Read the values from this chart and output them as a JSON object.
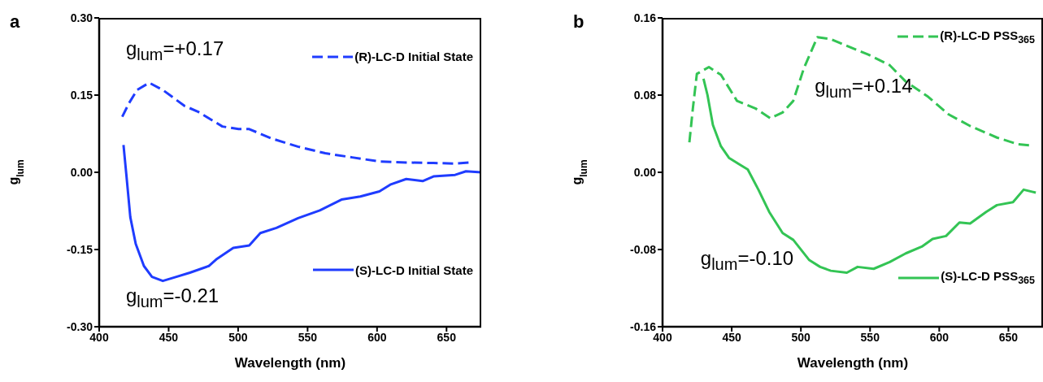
{
  "chart_data": [
    {
      "type": "line",
      "title": "a",
      "xlabel": "Wavelength (nm)",
      "ylabel": "g$_{lum}$",
      "xlim": [
        400,
        675
      ],
      "xticks": [
        400,
        450,
        500,
        550,
        600,
        650
      ],
      "ylim": [
        -0.3,
        0.3
      ],
      "yticks": [
        {
          "value": -0.3,
          "label": "-0.30"
        },
        {
          "value": -0.15,
          "label": "-0.15"
        },
        {
          "value": 0,
          "label": "0.00"
        },
        {
          "value": 0.15,
          "label": "0.15"
        },
        {
          "value": 0.3,
          "label": "0.30"
        }
      ],
      "legend": "right",
      "annotations": [
        "g$_{lum}$=+0.17",
        "g$_{lum}$=-0.21"
      ],
      "series": [
        {
          "name": "(R)-LC-D Initial State",
          "color": "#1f3cff",
          "line_style": "dashed",
          "x": [
            416.6,
            421.4,
            427.3,
            436,
            445.8,
            461.4,
            471,
            488.7,
            500.3,
            508,
            523.7,
            543,
            562.7,
            582,
            601.7,
            621,
            640.6,
            656,
            666
          ],
          "values": [
            0.108,
            0.134,
            0.16,
            0.174,
            0.16,
            0.129,
            0.118,
            0.089,
            0.084,
            0.084,
            0.066,
            0.05,
            0.037,
            0.029,
            0.021,
            0.019,
            0.018,
            0.017,
            0.019
          ]
        },
        {
          "name": "(S)-LC-D Initial State",
          "color": "#1f3cff",
          "line_style": "solid",
          "x": [
            417.5,
            419.5,
            422.4,
            426.3,
            432.2,
            438,
            445.8,
            455.5,
            465.3,
            478.9,
            484.8,
            496.5,
            508,
            516,
            527.6,
            543.2,
            558.8,
            574.4,
            588,
            601.7,
            609.5,
            621,
            632.8,
            640.6,
            656.2,
            664,
            675
          ],
          "values": [
            0.053,
            -0.003,
            -0.087,
            -0.139,
            -0.182,
            -0.203,
            -0.211,
            -0.203,
            -0.195,
            -0.182,
            -0.168,
            -0.147,
            -0.142,
            -0.118,
            -0.108,
            -0.089,
            -0.074,
            -0.053,
            -0.047,
            -0.037,
            -0.024,
            -0.013,
            -0.017,
            -0.008,
            -0.005,
            0.002,
            0
          ]
        }
      ]
    },
    {
      "type": "line",
      "title": "b",
      "xlabel": "Wavelength (nm)",
      "ylabel": "g$_{lum}$",
      "xlim": [
        400,
        675
      ],
      "xticks": [
        400,
        450,
        500,
        550,
        600,
        650
      ],
      "ylim": [
        -0.16,
        0.16
      ],
      "yticks": [
        {
          "value": -0.16,
          "label": "-0.16"
        },
        {
          "value": -0.08,
          "label": "-0.08"
        },
        {
          "value": 0,
          "label": "0.00"
        },
        {
          "value": 0.08,
          "label": "0.08"
        },
        {
          "value": 0.16,
          "label": "0.16"
        }
      ],
      "legend": "right",
      "annotations": [
        "g$_{lum}$=+0.14",
        "g$_{lum}$=-0.10"
      ],
      "series": [
        {
          "name": "(R)-LC-D PSS$_{365}$",
          "color": "#33c454",
          "line_style": "dashed",
          "x": [
            419.4,
            421.9,
            424.8,
            433.5,
            442.2,
            453.8,
            467.4,
            478,
            486.8,
            494.5,
            502.2,
            511.9,
            521.6,
            533.2,
            548.7,
            564.2,
            575.8,
            591.3,
            606.8,
            622.3,
            641.7,
            657.2,
            665
          ],
          "values": [
            0.031,
            0.066,
            0.102,
            0.109,
            0.101,
            0.074,
            0.066,
            0.056,
            0.062,
            0.074,
            0.108,
            0.14,
            0.138,
            0.131,
            0.122,
            0.111,
            0.094,
            0.079,
            0.06,
            0.048,
            0.036,
            0.029,
            0.028
          ]
        },
        {
          "name": "(S)-LC-D PSS$_{365}$",
          "color": "#33c454",
          "line_style": "solid",
          "x": [
            429.6,
            432.5,
            436.4,
            442.2,
            448,
            455.8,
            461.6,
            469.3,
            477.1,
            486.8,
            494.5,
            506.1,
            513.9,
            521.6,
            533.2,
            541,
            552.6,
            564.2,
            575.8,
            587.4,
            595.2,
            604.9,
            614.6,
            622.3,
            633.9,
            641.7,
            653.3,
            661,
            669.8
          ],
          "values": [
            0.097,
            0.08,
            0.049,
            0.027,
            0.015,
            0.008,
            0.003,
            -0.018,
            -0.041,
            -0.063,
            -0.07,
            -0.091,
            -0.098,
            -0.102,
            -0.104,
            -0.098,
            -0.1,
            -0.093,
            -0.084,
            -0.077,
            -0.069,
            -0.066,
            -0.052,
            -0.053,
            -0.041,
            -0.034,
            -0.031,
            -0.018,
            -0.021
          ]
        }
      ]
    }
  ]
}
